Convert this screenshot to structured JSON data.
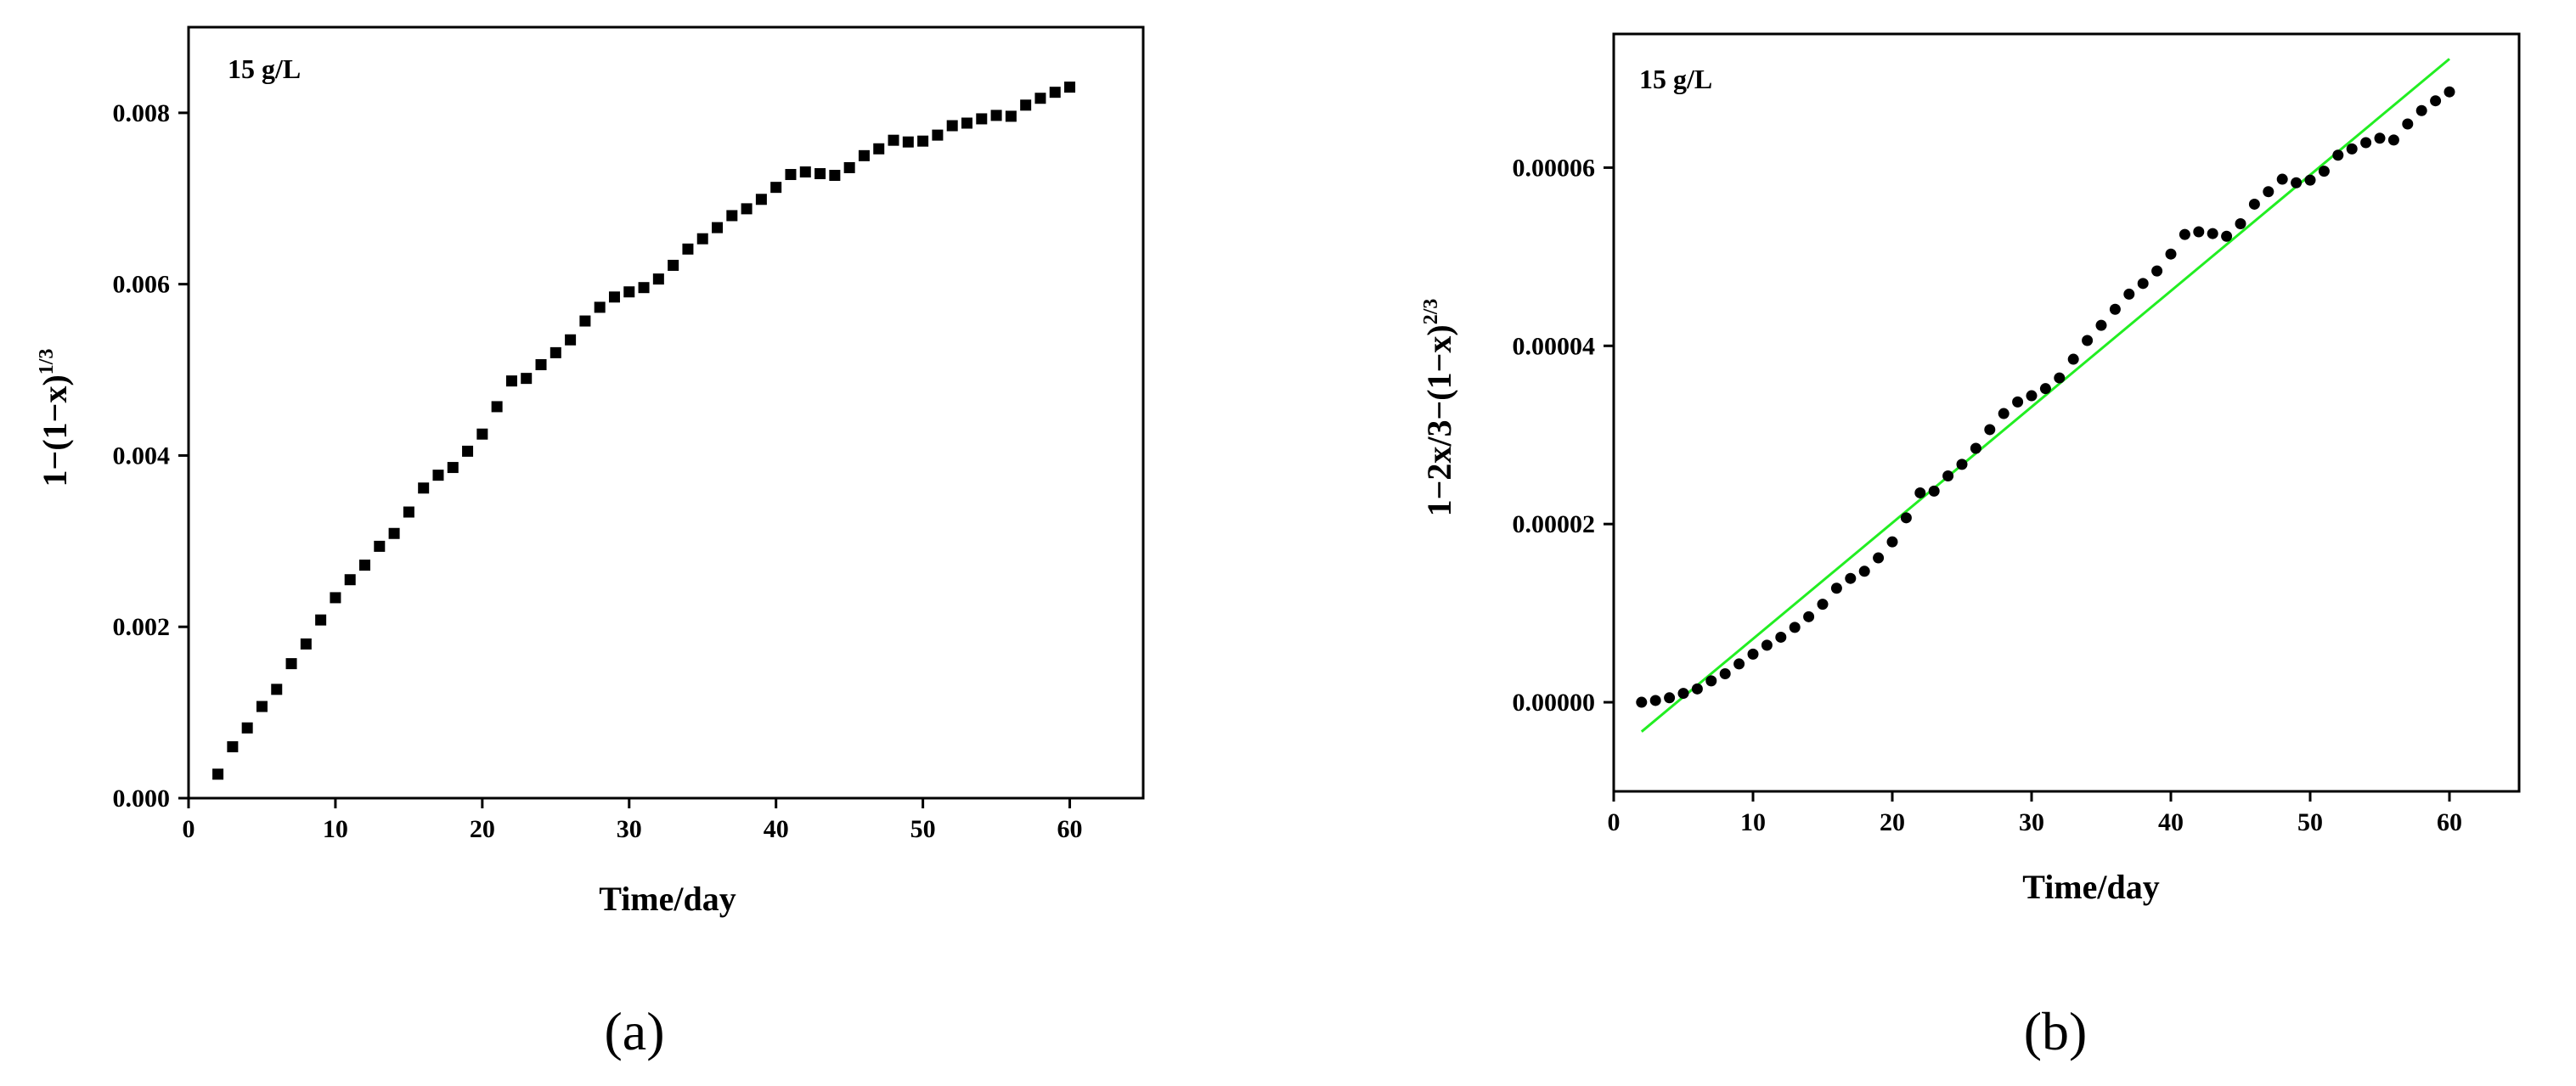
{
  "chart_data": [
    {
      "type": "scatter",
      "panel_label": "(a)",
      "annotation": "15 g/L",
      "xlabel": "Time/day",
      "ylabel": {
        "main": "1−(1−x)",
        "sup": "1/3"
      },
      "xlim": [
        0,
        65
      ],
      "ylim": [
        0,
        0.009
      ],
      "xticks": [
        0,
        10,
        20,
        30,
        40,
        50,
        60
      ],
      "xtick_labels": [
        "0",
        "10",
        "20",
        "30",
        "40",
        "50",
        "60"
      ],
      "yticks": [
        0,
        0.002,
        0.004,
        0.006,
        0.008
      ],
      "ytick_labels": [
        "0.000",
        "0.002",
        "0.004",
        "0.006",
        "0.008"
      ],
      "marker": "square",
      "marker_color": "#000000",
      "series": [
        {
          "x": [
            2,
            3,
            4,
            5,
            6,
            7,
            8,
            9,
            10,
            11,
            12,
            13,
            14,
            15,
            16,
            17,
            18,
            19,
            20,
            21,
            22,
            23,
            24,
            25,
            26,
            27,
            28,
            29,
            30,
            31,
            32,
            33,
            34,
            35,
            36,
            37,
            38,
            39,
            40,
            41,
            42,
            43,
            44,
            45,
            46,
            47,
            48,
            49,
            50,
            51,
            52,
            53,
            54,
            55,
            56,
            57,
            58,
            59,
            60
          ],
          "y": [
            0.00028,
            0.0006,
            0.00082,
            0.00107,
            0.00127,
            0.00157,
            0.0018,
            0.00208,
            0.00234,
            0.00255,
            0.00272,
            0.00294,
            0.00309,
            0.00334,
            0.00362,
            0.00377,
            0.00386,
            0.00405,
            0.00425,
            0.00457,
            0.00487,
            0.0049,
            0.00506,
            0.0052,
            0.00535,
            0.00557,
            0.00573,
            0.00585,
            0.00591,
            0.00596,
            0.00606,
            0.00622,
            0.00641,
            0.00653,
            0.00666,
            0.0068,
            0.00688,
            0.00699,
            0.00713,
            0.00728,
            0.00731,
            0.00729,
            0.00727,
            0.00736,
            0.0075,
            0.00758,
            0.00768,
            0.00766,
            0.00767,
            0.00774,
            0.00785,
            0.00788,
            0.00793,
            0.00797,
            0.00796,
            0.00809,
            0.00817,
            0.00824,
            0.0083
          ]
        }
      ]
    },
    {
      "type": "scatter",
      "panel_label": "(b)",
      "annotation": "15 g/L",
      "xlabel": "Time/day",
      "ylabel": {
        "main": "1−2x/3−(1−x)",
        "sup": "2/3"
      },
      "xlim": [
        0,
        65
      ],
      "ylim": [
        -1e-05,
        7.5e-05
      ],
      "xticks": [
        0,
        10,
        20,
        30,
        40,
        50,
        60
      ],
      "xtick_labels": [
        "0",
        "10",
        "20",
        "30",
        "40",
        "50",
        "60"
      ],
      "yticks": [
        0,
        2e-05,
        4e-05,
        6e-05
      ],
      "ytick_labels": [
        "0.00000",
        "0.00002",
        "0.00004",
        "0.00006"
      ],
      "marker": "circle",
      "marker_color": "#000000",
      "fit_line": {
        "x": [
          2,
          60
        ],
        "y": [
          -3.3e-06,
          7.22e-05
        ],
        "color": "#22ee22"
      },
      "series": [
        {
          "x": [
            2,
            3,
            4,
            5,
            6,
            7,
            8,
            9,
            10,
            11,
            12,
            13,
            14,
            15,
            16,
            17,
            18,
            19,
            20,
            21,
            22,
            23,
            24,
            25,
            26,
            27,
            28,
            29,
            30,
            31,
            32,
            33,
            34,
            35,
            36,
            37,
            38,
            39,
            40,
            41,
            42,
            43,
            44,
            45,
            46,
            47,
            48,
            49,
            50,
            51,
            52,
            53,
            54,
            55,
            56,
            57,
            58,
            59,
            60
          ],
          "y": [
            0.0,
            2e-07,
            5e-07,
            1e-06,
            1.5e-06,
            2.4e-06,
            3.2e-06,
            4.3e-06,
            5.4e-06,
            6.4e-06,
            7.3e-06,
            8.4e-06,
            9.6e-06,
            1.1e-05,
            1.28e-05,
            1.39e-05,
            1.47e-05,
            1.62e-05,
            1.8e-05,
            2.07e-05,
            2.35e-05,
            2.37e-05,
            2.54e-05,
            2.67e-05,
            2.85e-05,
            3.06e-05,
            3.24e-05,
            3.37e-05,
            3.44e-05,
            3.52e-05,
            3.64e-05,
            3.85e-05,
            4.06e-05,
            4.23e-05,
            4.41e-05,
            4.58e-05,
            4.7e-05,
            4.84e-05,
            5.03e-05,
            5.25e-05,
            5.28e-05,
            5.26e-05,
            5.23e-05,
            5.37e-05,
            5.59e-05,
            5.73e-05,
            5.87e-05,
            5.83e-05,
            5.86e-05,
            5.96e-05,
            6.14e-05,
            6.21e-05,
            6.28e-05,
            6.33e-05,
            6.31e-05,
            6.49e-05,
            6.64e-05,
            6.75e-05,
            6.85e-05
          ]
        }
      ]
    }
  ]
}
